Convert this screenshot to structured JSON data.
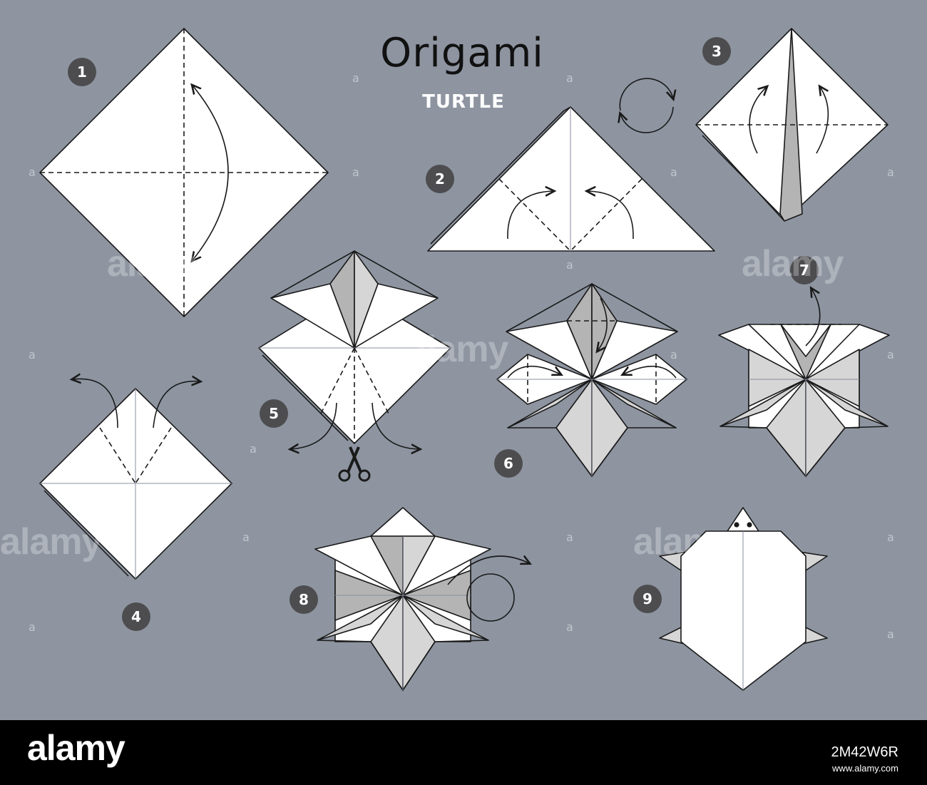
{
  "title": "Origami",
  "subtitle": "TURTLE",
  "steps": [
    {
      "number": "1"
    },
    {
      "number": "2"
    },
    {
      "number": "3"
    },
    {
      "number": "4"
    },
    {
      "number": "5"
    },
    {
      "number": "6"
    },
    {
      "number": "7"
    },
    {
      "number": "8"
    },
    {
      "number": "9"
    }
  ],
  "watermark": "alamy",
  "watermark_mark": "a",
  "footer": {
    "logo": "alamy",
    "image_id": "2M42W6R",
    "stock_label": "www.alamy.com"
  },
  "colors": {
    "background": "#8e95a1",
    "paper": "#ffffff",
    "paper_shade": "#b4b4b4",
    "paper_light_shade": "#d6d6d6",
    "badge": "#4d4d4f",
    "footer": "#000000"
  },
  "icons": [
    "fold-arrow",
    "rotate-icon",
    "scissors-icon"
  ]
}
